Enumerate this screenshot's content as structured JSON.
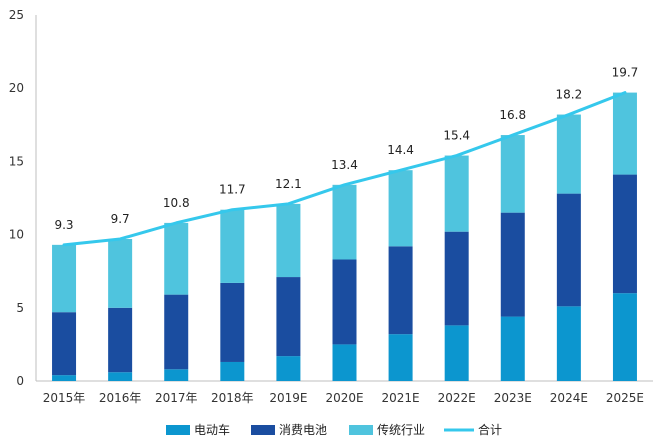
{
  "chart_data": {
    "type": "bar",
    "stacked": true,
    "categories": [
      "2015年",
      "2016年",
      "2017年",
      "2018年",
      "2019E",
      "2020E",
      "2021E",
      "2022E",
      "2023E",
      "2024E",
      "2025E"
    ],
    "series": [
      {
        "name": "电动车",
        "color": "#0c96cf",
        "values": [
          0.4,
          0.6,
          0.8,
          1.3,
          1.7,
          2.5,
          3.2,
          3.8,
          4.4,
          5.1,
          6.0
        ]
      },
      {
        "name": "消费电池",
        "color": "#1a4da0",
        "values": [
          4.3,
          4.4,
          5.1,
          5.4,
          5.4,
          5.8,
          6.0,
          6.4,
          7.1,
          7.7,
          8.1
        ]
      },
      {
        "name": "传统行业",
        "color": "#4fc4de",
        "values": [
          4.6,
          4.7,
          4.9,
          5.0,
          5.0,
          5.1,
          5.2,
          5.2,
          5.3,
          5.4,
          5.6
        ]
      }
    ],
    "total_line": {
      "name": "合计",
      "color": "#35c8ec",
      "values": [
        9.3,
        9.7,
        10.8,
        11.7,
        12.1,
        13.4,
        14.4,
        15.4,
        16.8,
        18.2,
        19.7
      ]
    },
    "data_labels": [
      "9.3",
      "9.7",
      "10.8",
      "11.7",
      "12.1",
      "13.4",
      "14.4",
      "15.4",
      "16.8",
      "18.2",
      "19.7"
    ],
    "y_ticks": [
      "0",
      "5",
      "10",
      "15",
      "20",
      "25"
    ],
    "ylim": [
      0,
      25
    ],
    "grid": false,
    "legend_position": "bottom"
  }
}
